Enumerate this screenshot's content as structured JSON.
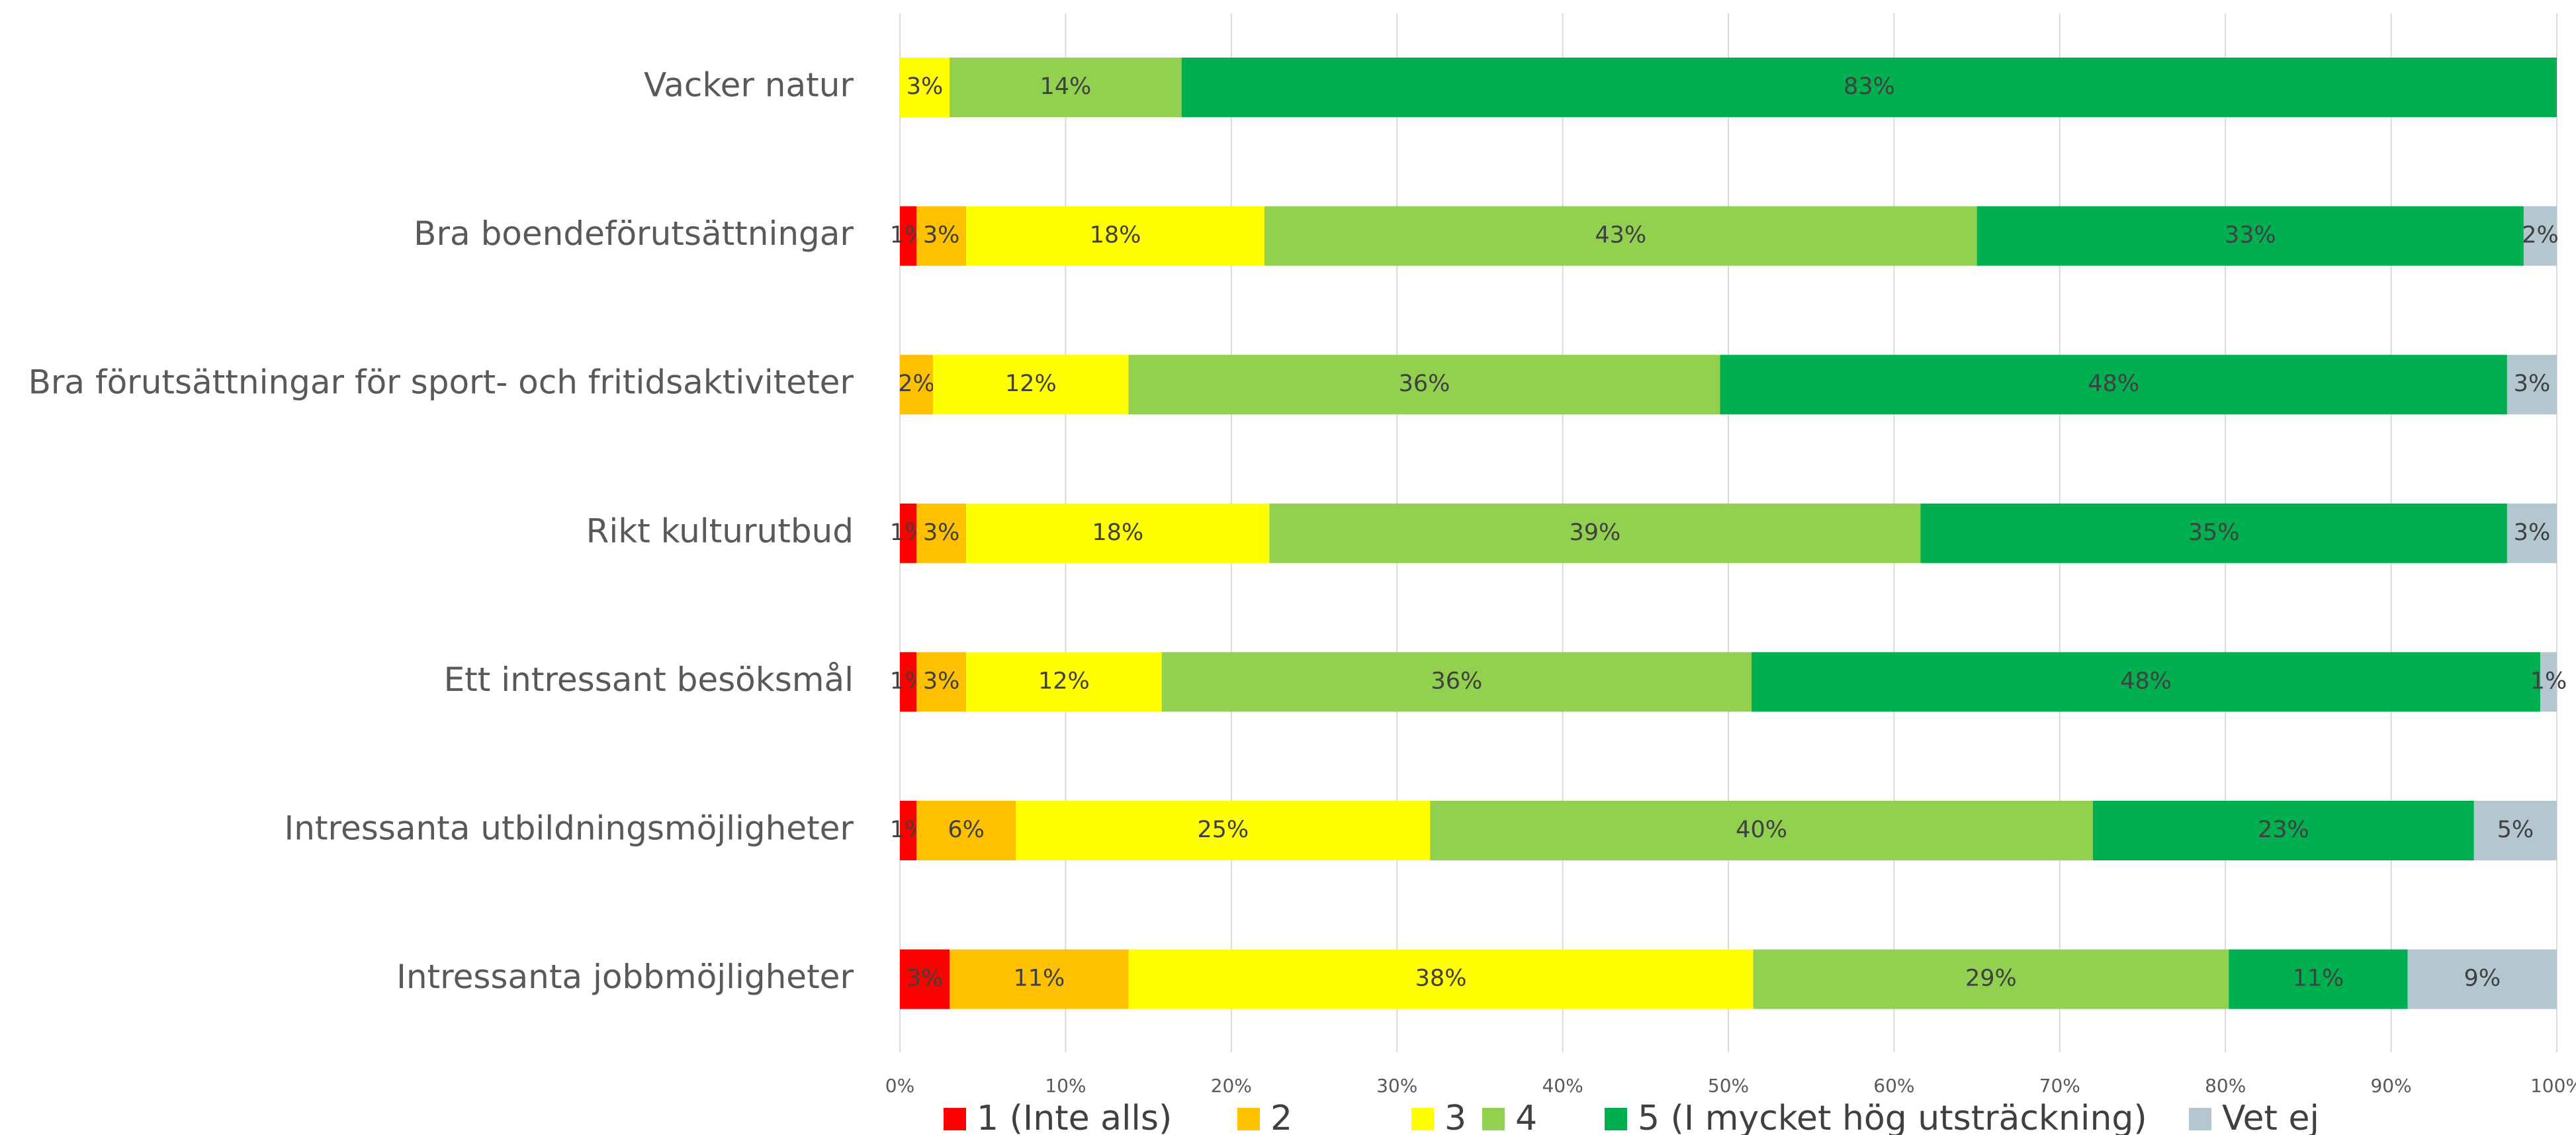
{
  "chart_data": {
    "type": "stacked-bar-horizontal",
    "categories": [
      "Vacker natur",
      "Bra boendeförutsättningar",
      "Bra förutsättningar för sport- och fritidsaktiviteter",
      "Rikt kulturutbud",
      "Ett intressant besöksmål",
      "Intressanta utbildningsmöjligheter",
      "Intressanta jobbmöjligheter"
    ],
    "series": [
      {
        "name": "1 (Inte alls)",
        "color": "#ff0000",
        "values": [
          null,
          1,
          null,
          1,
          1,
          1,
          3
        ],
        "value_labels": [
          null,
          "1%",
          null,
          "1%",
          "1%",
          "1%",
          "3%"
        ]
      },
      {
        "name": "2",
        "color": "#ffc000",
        "values": [
          null,
          3,
          2,
          3,
          3,
          6,
          10.8
        ],
        "value_labels": [
          null,
          "3%",
          "2%",
          "3%",
          "3%",
          "6%",
          "11%"
        ]
      },
      {
        "name": "3",
        "color": "#ffff00",
        "values": [
          3,
          18,
          11.8,
          18.3,
          11.8,
          25,
          37.7
        ],
        "value_labels": [
          "3%",
          "18%",
          "12%",
          "18%",
          "12%",
          "25%",
          "38%"
        ]
      },
      {
        "name": "4",
        "color": "#92d050",
        "values": [
          14,
          43,
          35.7,
          39.3,
          35.6,
          40,
          28.7
        ],
        "value_labels": [
          "14%",
          "43%",
          "36%",
          "39%",
          "36%",
          "40%",
          "29%"
        ]
      },
      {
        "name": "5 (I mycket hög utsträckning)",
        "color": "#00b050",
        "values": [
          83,
          33,
          47.5,
          35.4,
          47.6,
          23,
          10.8
        ],
        "value_labels": [
          "83%",
          "33%",
          "48%",
          "35%",
          "48%",
          "23%",
          "11%"
        ]
      },
      {
        "name": "Vet ej",
        "color": "#b4c7d0",
        "values": [
          null,
          2,
          3,
          3,
          1,
          5,
          9
        ],
        "value_labels": [
          null,
          "2%",
          "3%",
          "3%",
          "1%",
          "5%",
          "9%"
        ]
      }
    ],
    "xlim": [
      0,
      100
    ],
    "xticks": [
      {
        "value": 0,
        "label": "0%"
      },
      {
        "value": 10,
        "label": "10%"
      },
      {
        "value": 20,
        "label": "20%"
      },
      {
        "value": 30,
        "label": "30%"
      },
      {
        "value": 40,
        "label": "40%"
      },
      {
        "value": 50,
        "label": "50%"
      },
      {
        "value": 60,
        "label": "60%"
      },
      {
        "value": 70,
        "label": "70%"
      },
      {
        "value": 80,
        "label": "80%"
      },
      {
        "value": 90,
        "label": "90%"
      },
      {
        "value": 100,
        "label": "100%"
      }
    ],
    "grid": true,
    "legend": "bottom"
  }
}
